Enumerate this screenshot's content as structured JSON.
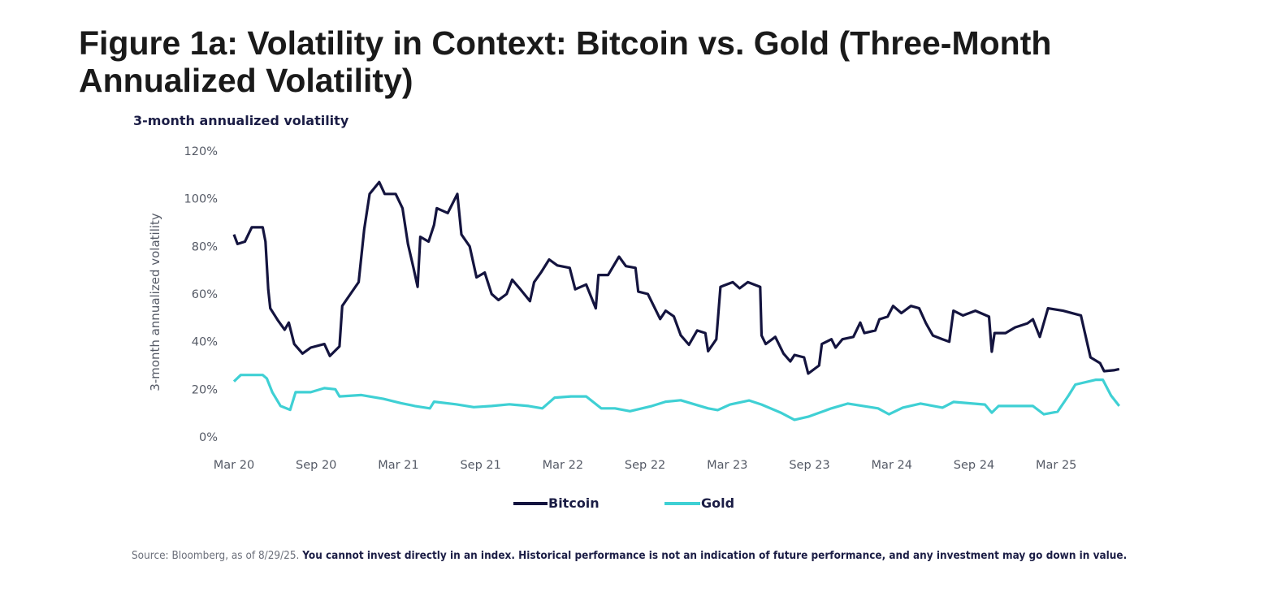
{
  "figure_title": "Figure 1a: Volatility in Context: Bitcoin vs. Gold (Three-Month Annualized Volatility)",
  "source_note": {
    "plain": "Source: Bloomberg, as of 8/29/25. ",
    "bold": "You cannot invest directly in an index. Historical performance is not an indication of future performance, and any investment may go down in value."
  },
  "chart_data": {
    "type": "line",
    "title": "3-month annualized volatility",
    "xlabel": "",
    "ylabel": "3-month annualized volatility",
    "x_unit": "months since Mar 2020",
    "xlim": [
      0,
      65
    ],
    "ylim": [
      0,
      120
    ],
    "grid": false,
    "legend_position": "bottom-center",
    "x_ticks": [
      {
        "value": 0,
        "label": "Mar 20"
      },
      {
        "value": 6,
        "label": "Sep 20"
      },
      {
        "value": 12,
        "label": "Mar 21"
      },
      {
        "value": 18,
        "label": "Sep 21"
      },
      {
        "value": 24,
        "label": "Mar 22"
      },
      {
        "value": 30,
        "label": "Sep 22"
      },
      {
        "value": 36,
        "label": "Mar 23"
      },
      {
        "value": 42,
        "label": "Sep 23"
      },
      {
        "value": 48,
        "label": "Mar 24"
      },
      {
        "value": 54,
        "label": "Sep 24"
      },
      {
        "value": 60,
        "label": "Mar 25"
      }
    ],
    "y_ticks": [
      {
        "value": 0,
        "label": "0%"
      },
      {
        "value": 20,
        "label": "20%"
      },
      {
        "value": 40,
        "label": "40%"
      },
      {
        "value": 60,
        "label": "60%"
      },
      {
        "value": 80,
        "label": "80%"
      },
      {
        "value": 100,
        "label": "100%"
      },
      {
        "value": 120,
        "label": "120%"
      }
    ],
    "series": [
      {
        "name": "Bitcoin",
        "color": "#14143f",
        "points": [
          [
            0,
            85
          ],
          [
            0.26,
            81
          ],
          [
            0.8,
            82
          ],
          [
            1.3,
            88
          ],
          [
            2.1,
            88
          ],
          [
            2.3,
            82
          ],
          [
            2.5,
            62
          ],
          [
            2.65,
            54
          ],
          [
            3.2,
            49
          ],
          [
            3.7,
            45
          ],
          [
            4.0,
            48
          ],
          [
            4.4,
            39
          ],
          [
            5.0,
            35
          ],
          [
            5.6,
            37.5
          ],
          [
            6.6,
            39
          ],
          [
            7.0,
            34
          ],
          [
            7.7,
            38
          ],
          [
            7.9,
            55
          ],
          [
            8.5,
            60
          ],
          [
            9.1,
            65
          ],
          [
            9.5,
            87
          ],
          [
            9.9,
            102
          ],
          [
            10.6,
            107
          ],
          [
            11.0,
            102
          ],
          [
            11.8,
            102
          ],
          [
            12.3,
            96
          ],
          [
            12.7,
            81
          ],
          [
            13.1,
            71
          ],
          [
            13.4,
            63
          ],
          [
            13.6,
            84
          ],
          [
            14.2,
            82
          ],
          [
            14.6,
            89
          ],
          [
            14.8,
            96
          ],
          [
            15.6,
            94
          ],
          [
            16.3,
            102
          ],
          [
            16.6,
            85
          ],
          [
            17.2,
            80
          ],
          [
            17.7,
            67
          ],
          [
            18.3,
            69
          ],
          [
            18.8,
            60
          ],
          [
            19.3,
            57.5
          ],
          [
            19.9,
            60
          ],
          [
            20.3,
            66
          ],
          [
            20.9,
            62
          ],
          [
            21.6,
            57
          ],
          [
            21.9,
            65
          ],
          [
            22.4,
            69
          ],
          [
            23.0,
            74.5
          ],
          [
            23.6,
            72
          ],
          [
            24.5,
            71
          ],
          [
            24.9,
            62
          ],
          [
            25.7,
            64
          ],
          [
            26.4,
            54
          ],
          [
            26.6,
            68
          ],
          [
            27.3,
            68
          ],
          [
            28.1,
            75.7
          ],
          [
            28.6,
            71.7
          ],
          [
            29.3,
            71
          ],
          [
            29.5,
            61
          ],
          [
            30.2,
            60
          ],
          [
            31.1,
            49.5
          ],
          [
            31.5,
            53
          ],
          [
            32.1,
            50.6
          ],
          [
            32.6,
            42.7
          ],
          [
            33.2,
            38.7
          ],
          [
            33.8,
            44.7
          ],
          [
            34.4,
            43.6
          ],
          [
            34.6,
            36
          ],
          [
            35.2,
            41
          ],
          [
            35.5,
            63
          ],
          [
            36.4,
            65
          ],
          [
            36.9,
            62.4
          ],
          [
            37.5,
            65
          ],
          [
            38.4,
            63
          ],
          [
            38.5,
            42.6
          ],
          [
            38.8,
            39
          ],
          [
            39.5,
            42
          ],
          [
            40.1,
            35
          ],
          [
            40.6,
            31.7
          ],
          [
            40.9,
            34.4
          ],
          [
            41.6,
            33.4
          ],
          [
            41.9,
            26.6
          ],
          [
            42.7,
            30
          ],
          [
            42.9,
            39
          ],
          [
            43.6,
            41
          ],
          [
            43.9,
            37.5
          ],
          [
            44.4,
            41
          ],
          [
            45.2,
            42
          ],
          [
            45.7,
            48
          ],
          [
            46.0,
            43.6
          ],
          [
            46.8,
            44.7
          ],
          [
            47.1,
            49.4
          ],
          [
            47.7,
            50.5
          ],
          [
            48.1,
            55
          ],
          [
            48.7,
            52
          ],
          [
            49.4,
            55
          ],
          [
            50.0,
            54
          ],
          [
            50.5,
            47.7
          ],
          [
            51.0,
            42.6
          ],
          [
            51.7,
            41
          ],
          [
            52.2,
            40
          ],
          [
            52.5,
            53
          ],
          [
            53.2,
            51
          ],
          [
            54.1,
            53
          ],
          [
            55.1,
            50.5
          ],
          [
            55.3,
            35.8
          ],
          [
            55.5,
            43.6
          ],
          [
            56.3,
            43.6
          ],
          [
            57.0,
            46
          ],
          [
            57.9,
            47.7
          ],
          [
            58.3,
            49.4
          ],
          [
            58.8,
            42
          ],
          [
            59.4,
            54
          ],
          [
            60.5,
            53
          ],
          [
            61.8,
            51
          ],
          [
            62.5,
            33.4
          ],
          [
            63.2,
            31
          ],
          [
            63.5,
            27.6
          ],
          [
            64.2,
            28
          ],
          [
            64.6,
            28.5
          ]
        ]
      },
      {
        "name": "Gold",
        "color": "#3fd0d4",
        "points": [
          [
            0,
            23.3
          ],
          [
            0.5,
            26
          ],
          [
            2.1,
            26
          ],
          [
            2.4,
            24.5
          ],
          [
            2.8,
            18.8
          ],
          [
            3.4,
            13
          ],
          [
            4.1,
            11.4
          ],
          [
            4.5,
            18.8
          ],
          [
            5.6,
            18.8
          ],
          [
            6.6,
            20.5
          ],
          [
            7.4,
            20
          ],
          [
            7.7,
            17
          ],
          [
            9.3,
            17.6
          ],
          [
            10.9,
            16
          ],
          [
            12.2,
            14.2
          ],
          [
            13.2,
            13
          ],
          [
            14.3,
            12
          ],
          [
            14.6,
            14.8
          ],
          [
            16.2,
            13.7
          ],
          [
            17.5,
            12.5
          ],
          [
            18.8,
            13
          ],
          [
            20.1,
            13.7
          ],
          [
            21.5,
            13
          ],
          [
            22.5,
            12
          ],
          [
            23.4,
            16.5
          ],
          [
            24.6,
            17
          ],
          [
            25.7,
            17
          ],
          [
            26.8,
            12
          ],
          [
            27.8,
            12
          ],
          [
            28.9,
            10.8
          ],
          [
            30.5,
            13
          ],
          [
            31.5,
            14.8
          ],
          [
            32.6,
            15.4
          ],
          [
            33.6,
            13.7
          ],
          [
            34.6,
            12
          ],
          [
            35.3,
            11.3
          ],
          [
            36.2,
            13.6
          ],
          [
            37.6,
            15.3
          ],
          [
            38.5,
            13.6
          ],
          [
            39.9,
            10.2
          ],
          [
            40.9,
            7.2
          ],
          [
            41.9,
            8.5
          ],
          [
            43.6,
            12
          ],
          [
            44.8,
            14
          ],
          [
            47.0,
            12
          ],
          [
            47.8,
            9.5
          ],
          [
            48.8,
            12.3
          ],
          [
            50.1,
            14
          ],
          [
            51.7,
            12.3
          ],
          [
            52.5,
            14.7
          ],
          [
            54.8,
            13.6
          ],
          [
            55.3,
            10.2
          ],
          [
            55.8,
            13
          ],
          [
            58.3,
            13
          ],
          [
            59.1,
            9.5
          ],
          [
            60.1,
            10.6
          ],
          [
            60.9,
            17.4
          ],
          [
            61.4,
            22
          ],
          [
            62.9,
            24
          ],
          [
            63.4,
            24
          ],
          [
            64.0,
            17.4
          ],
          [
            64.6,
            13
          ]
        ]
      }
    ]
  }
}
